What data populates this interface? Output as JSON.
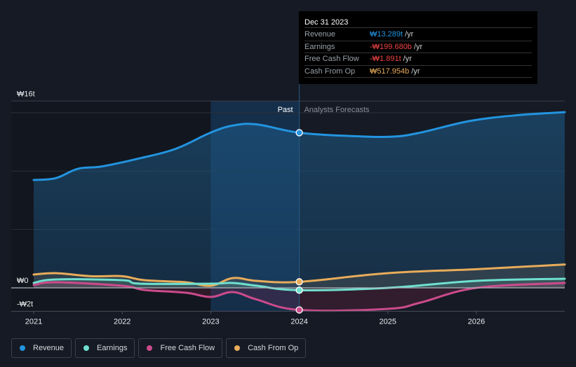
{
  "colors": {
    "revenue": "#2394df",
    "earnings": "#6fe0cf",
    "free_cash_flow": "#cc4b8c",
    "cash_from_op": "#e8ac5a",
    "negative": "#ef4444",
    "background": "#151a24"
  },
  "tooltip": {
    "title": "Dec 31 2023",
    "rows": [
      {
        "label": "Revenue",
        "value": "₩13.289t",
        "unit": "/yr",
        "color_key": "revenue"
      },
      {
        "label": "Earnings",
        "value": "-₩199.680b",
        "unit": "/yr",
        "color_key": "negative"
      },
      {
        "label": "Free Cash Flow",
        "value": "-₩1.891t",
        "unit": "/yr",
        "color_key": "negative"
      },
      {
        "label": "Cash From Op",
        "value": "₩517.954b",
        "unit": "/yr",
        "color_key": "cash_from_op"
      }
    ]
  },
  "legend": [
    {
      "label": "Revenue",
      "color_key": "revenue"
    },
    {
      "label": "Earnings",
      "color_key": "earnings"
    },
    {
      "label": "Free Cash Flow",
      "color_key": "free_cash_flow"
    },
    {
      "label": "Cash From Op",
      "color_key": "cash_from_op"
    }
  ],
  "chart_data": {
    "type": "area",
    "title": "",
    "xlabel": "",
    "ylabel": "",
    "unit": "KRW trillions",
    "x_range": [
      2020.78,
      2026.99
    ],
    "ylim": [
      -2,
      16
    ],
    "y_ticks": [
      {
        "value": 16,
        "label": "₩16t"
      },
      {
        "value": 0,
        "label": "₩0"
      },
      {
        "value": -2,
        "label": "-₩2t"
      }
    ],
    "y_gridlines": [
      15,
      10,
      5
    ],
    "x_ticks": [
      {
        "value": 2021,
        "label": "2021"
      },
      {
        "value": 2022,
        "label": "2022"
      },
      {
        "value": 2023,
        "label": "2023"
      },
      {
        "value": 2024,
        "label": "2024"
      },
      {
        "value": 2025,
        "label": "2025"
      },
      {
        "value": 2026,
        "label": "2026"
      }
    ],
    "past_label": "Past",
    "forecast_label": "Analysts Forecasts",
    "highlight_range": [
      2023.0,
      2024.0
    ],
    "divider_x": 2024.0,
    "series": [
      {
        "name": "Revenue",
        "color_key": "revenue",
        "points": [
          [
            2021.0,
            9.24
          ],
          [
            2021.25,
            9.4
          ],
          [
            2021.5,
            10.2
          ],
          [
            2021.77,
            10.4
          ],
          [
            2022.2,
            11.1
          ],
          [
            2022.6,
            11.9
          ],
          [
            2023.0,
            13.3
          ],
          [
            2023.25,
            13.9
          ],
          [
            2023.52,
            14.0
          ],
          [
            2024.0,
            13.29
          ],
          [
            2024.6,
            13.0
          ],
          [
            2025.05,
            12.95
          ],
          [
            2025.37,
            13.3
          ],
          [
            2025.93,
            14.3
          ],
          [
            2026.48,
            14.8
          ],
          [
            2027.0,
            15.05
          ]
        ]
      },
      {
        "name": "Cash From Op",
        "color_key": "cash_from_op",
        "points": [
          [
            2021.0,
            1.14
          ],
          [
            2021.25,
            1.26
          ],
          [
            2021.65,
            1.0
          ],
          [
            2022.0,
            1.0
          ],
          [
            2022.25,
            0.66
          ],
          [
            2022.72,
            0.48
          ],
          [
            2023.0,
            0.18
          ],
          [
            2023.25,
            0.84
          ],
          [
            2023.52,
            0.6
          ],
          [
            2024.0,
            0.52
          ],
          [
            2025.0,
            1.26
          ],
          [
            2026.0,
            1.6
          ],
          [
            2027.0,
            2.0
          ]
        ]
      },
      {
        "name": "Earnings",
        "color_key": "earnings",
        "points": [
          [
            2021.0,
            0.42
          ],
          [
            2021.25,
            0.72
          ],
          [
            2022.0,
            0.66
          ],
          [
            2022.2,
            0.36
          ],
          [
            2023.0,
            0.36
          ],
          [
            2023.25,
            0.42
          ],
          [
            2023.52,
            0.18
          ],
          [
            2024.0,
            -0.2
          ],
          [
            2025.0,
            0.0
          ],
          [
            2026.0,
            0.6
          ],
          [
            2027.0,
            0.78
          ]
        ]
      },
      {
        "name": "Free Cash Flow",
        "color_key": "free_cash_flow",
        "points": [
          [
            2021.0,
            0.24
          ],
          [
            2021.25,
            0.48
          ],
          [
            2022.0,
            0.18
          ],
          [
            2022.25,
            -0.18
          ],
          [
            2022.72,
            -0.42
          ],
          [
            2023.0,
            -0.78
          ],
          [
            2023.25,
            -0.36
          ],
          [
            2023.52,
            -1.0
          ],
          [
            2024.0,
            -1.89
          ],
          [
            2025.0,
            -1.8
          ],
          [
            2025.37,
            -1.26
          ],
          [
            2026.0,
            0.0
          ],
          [
            2027.0,
            0.42
          ]
        ]
      }
    ],
    "markers_at": 2024.0
  }
}
